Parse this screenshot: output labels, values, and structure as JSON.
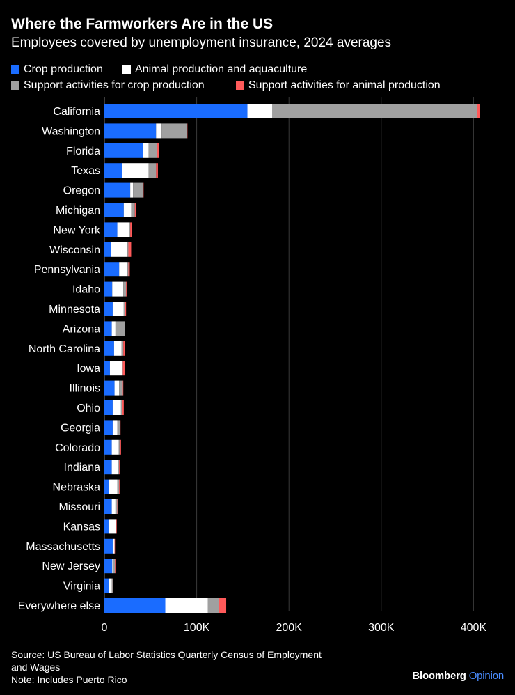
{
  "header": {
    "title": "Where the Farmworkers Are in the US",
    "subtitle": "Employees covered by unemployment insurance, 2024 averages"
  },
  "colors": {
    "background": "#000000",
    "crop": "#1a6cff",
    "animal": "#ffffff",
    "support_crop": "#a0a0a0",
    "support_animal": "#ff5a5a",
    "brand_accent": "#4a8cff"
  },
  "chart_data": {
    "type": "bar",
    "orientation": "horizontal",
    "stacked": true,
    "title": "Where the Farmworkers Are in the US",
    "subtitle": "Employees covered by unemployment insurance, 2024 averages",
    "xlabel": "",
    "ylabel": "",
    "xlim": [
      0,
      400000
    ],
    "x_ticks": [
      0,
      100000,
      200000,
      300000,
      400000
    ],
    "x_tick_labels": [
      "0",
      "100K",
      "200K",
      "300K",
      "400K"
    ],
    "grid": "vertical",
    "legend_position": "top",
    "categories": [
      "California",
      "Washington",
      "Florida",
      "Texas",
      "Oregon",
      "Michigan",
      "New York",
      "Wisconsin",
      "Pennsylvania",
      "Idaho",
      "Minnesota",
      "Arizona",
      "North Carolina",
      "Iowa",
      "Illinois",
      "Ohio",
      "Georgia",
      "Colorado",
      "Indiana",
      "Nebraska",
      "Missouri",
      "Kansas",
      "Massachusetts",
      "New Jersey",
      "Virginia",
      "Everywhere else"
    ],
    "series": [
      {
        "name": "Crop production",
        "color": "#1a6cff",
        "values": [
          155000,
          56000,
          42000,
          19000,
          28000,
          21000,
          14000,
          7000,
          16000,
          8500,
          9000,
          8000,
          10500,
          6000,
          11000,
          9000,
          9000,
          8000,
          8000,
          5000,
          8000,
          4500,
          9000,
          8500,
          5000,
          66000
        ]
      },
      {
        "name": "Animal production and aquaculture",
        "color": "#ffffff",
        "values": [
          27000,
          6000,
          6000,
          29000,
          3000,
          8000,
          13000,
          18000,
          9000,
          12000,
          12000,
          4000,
          8000,
          13000,
          5000,
          9000,
          5000,
          7500,
          7000,
          9000,
          4000,
          8000,
          2000,
          1000,
          3000,
          46000
        ]
      },
      {
        "name": "Support activities for crop production",
        "color": "#a0a0a0",
        "values": [
          222000,
          27000,
          9000,
          8000,
          11000,
          4000,
          1000,
          1000,
          1000,
          3000,
          1000,
          10000,
          2000,
          1000,
          4000,
          1000,
          3000,
          1000,
          1000,
          2000,
          2000,
          500,
          0,
          2000,
          1000,
          12000
        ]
      },
      {
        "name": "Support activities for animal production",
        "color": "#ff5a5a",
        "values": [
          3000,
          1000,
          2000,
          2000,
          500,
          1000,
          2000,
          3000,
          1500,
          1000,
          1500,
          500,
          1500,
          2000,
          500,
          2000,
          500,
          1500,
          1000,
          1000,
          1000,
          500,
          500,
          1000,
          500,
          8000
        ]
      }
    ]
  },
  "footer": {
    "source_line1": "Source: US Bureau of Labor Statistics Quarterly Census of Employment",
    "source_line2": "and Wages",
    "note": "Note: Includes Puerto Rico",
    "brand_name": "Bloomberg",
    "brand_accent": "Opinion"
  }
}
